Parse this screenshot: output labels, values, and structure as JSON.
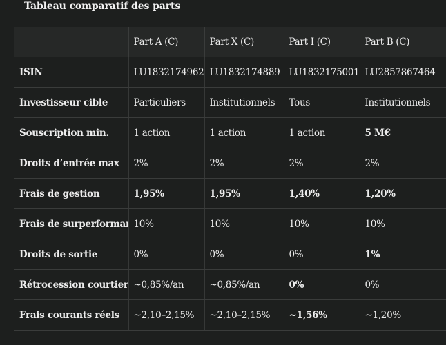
{
  "title": "Tableau comparatif des parts",
  "table": {
    "headers": [
      "",
      "Part A (C)",
      "Part X (C)",
      "Part I (C)",
      "Part B (C)"
    ],
    "rows": [
      {
        "label": "ISIN",
        "cells": [
          "LU1832174962",
          "LU1832174889",
          "LU1832175001",
          "LU2857867464"
        ]
      },
      {
        "label": "Investisseur cible",
        "cells": [
          "Particuliers",
          "Institutionnels",
          "Tous",
          "Institutionnels"
        ]
      },
      {
        "label": "Souscription min.",
        "cells": [
          "1 action",
          "1 action",
          "1 action",
          "5 M€"
        ]
      },
      {
        "label": "Droits d’entrée max",
        "cells": [
          "2%",
          "2%",
          "2%",
          "2%"
        ]
      },
      {
        "label": "Frais de gestion",
        "cells": [
          "1,95%",
          "1,95%",
          "1,40%",
          "1,20%"
        ]
      },
      {
        "label": "Frais de surperformance",
        "cells": [
          "10%",
          "10%",
          "10%",
          "10%"
        ]
      },
      {
        "label": "Droits de sortie",
        "cells": [
          "0%",
          "0%",
          "0%",
          "1%"
        ]
      },
      {
        "label": "Rétrocession courtier",
        "cells": [
          "~0,85%/an",
          "~0,85%/an",
          "0%",
          "0%"
        ]
      },
      {
        "label": "Frais courants réels",
        "cells": [
          "~2,10–2,15%",
          "~2,10–2,15%",
          "~1,56%",
          "~1,20%"
        ]
      }
    ]
  }
}
